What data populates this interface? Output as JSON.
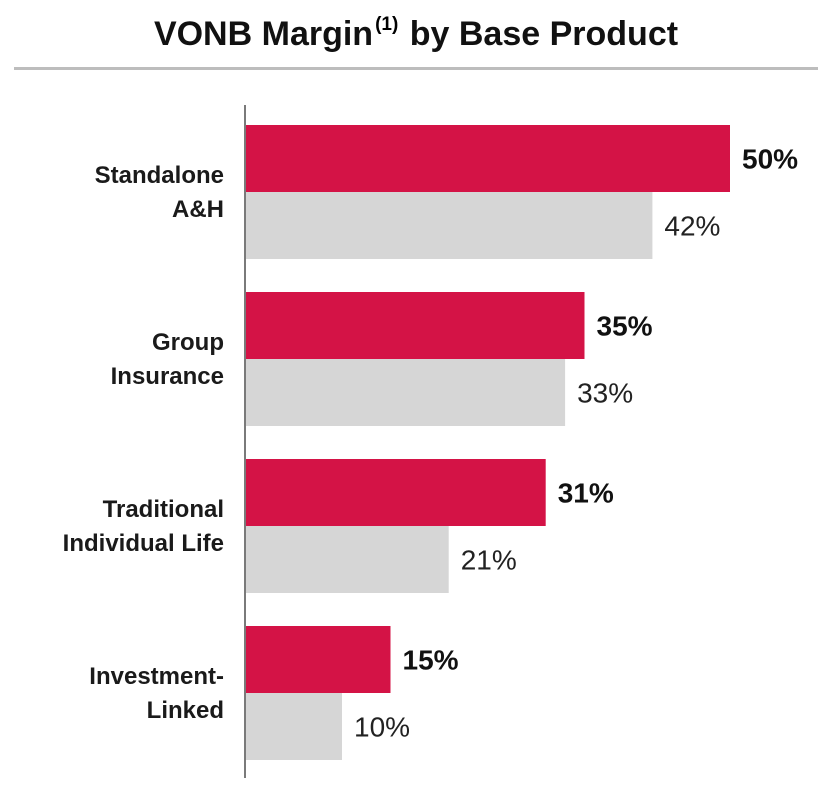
{
  "chart_data": {
    "type": "bar",
    "orientation": "horizontal",
    "title": "VONB Margin",
    "title_superscript": "(1)",
    "title_suffix": "by Base Product",
    "categories": [
      [
        "Standalone",
        "A&H"
      ],
      [
        "Group",
        "Insurance"
      ],
      [
        "Traditional",
        "Individual Life"
      ],
      [
        "Investment-",
        "Linked"
      ]
    ],
    "series": [
      {
        "values": [
          50,
          35,
          31,
          15
        ],
        "labels": [
          "50%",
          "35%",
          "31%",
          "15%"
        ],
        "color": "#d41346",
        "label_weight": "bold"
      },
      {
        "values": [
          42,
          33,
          21,
          10
        ],
        "labels": [
          "42%",
          "33%",
          "21%",
          "10%"
        ],
        "color": "#d6d6d6",
        "label_weight": "normal"
      }
    ],
    "xlim": [
      0,
      50
    ],
    "grid": false,
    "legend": "none"
  }
}
